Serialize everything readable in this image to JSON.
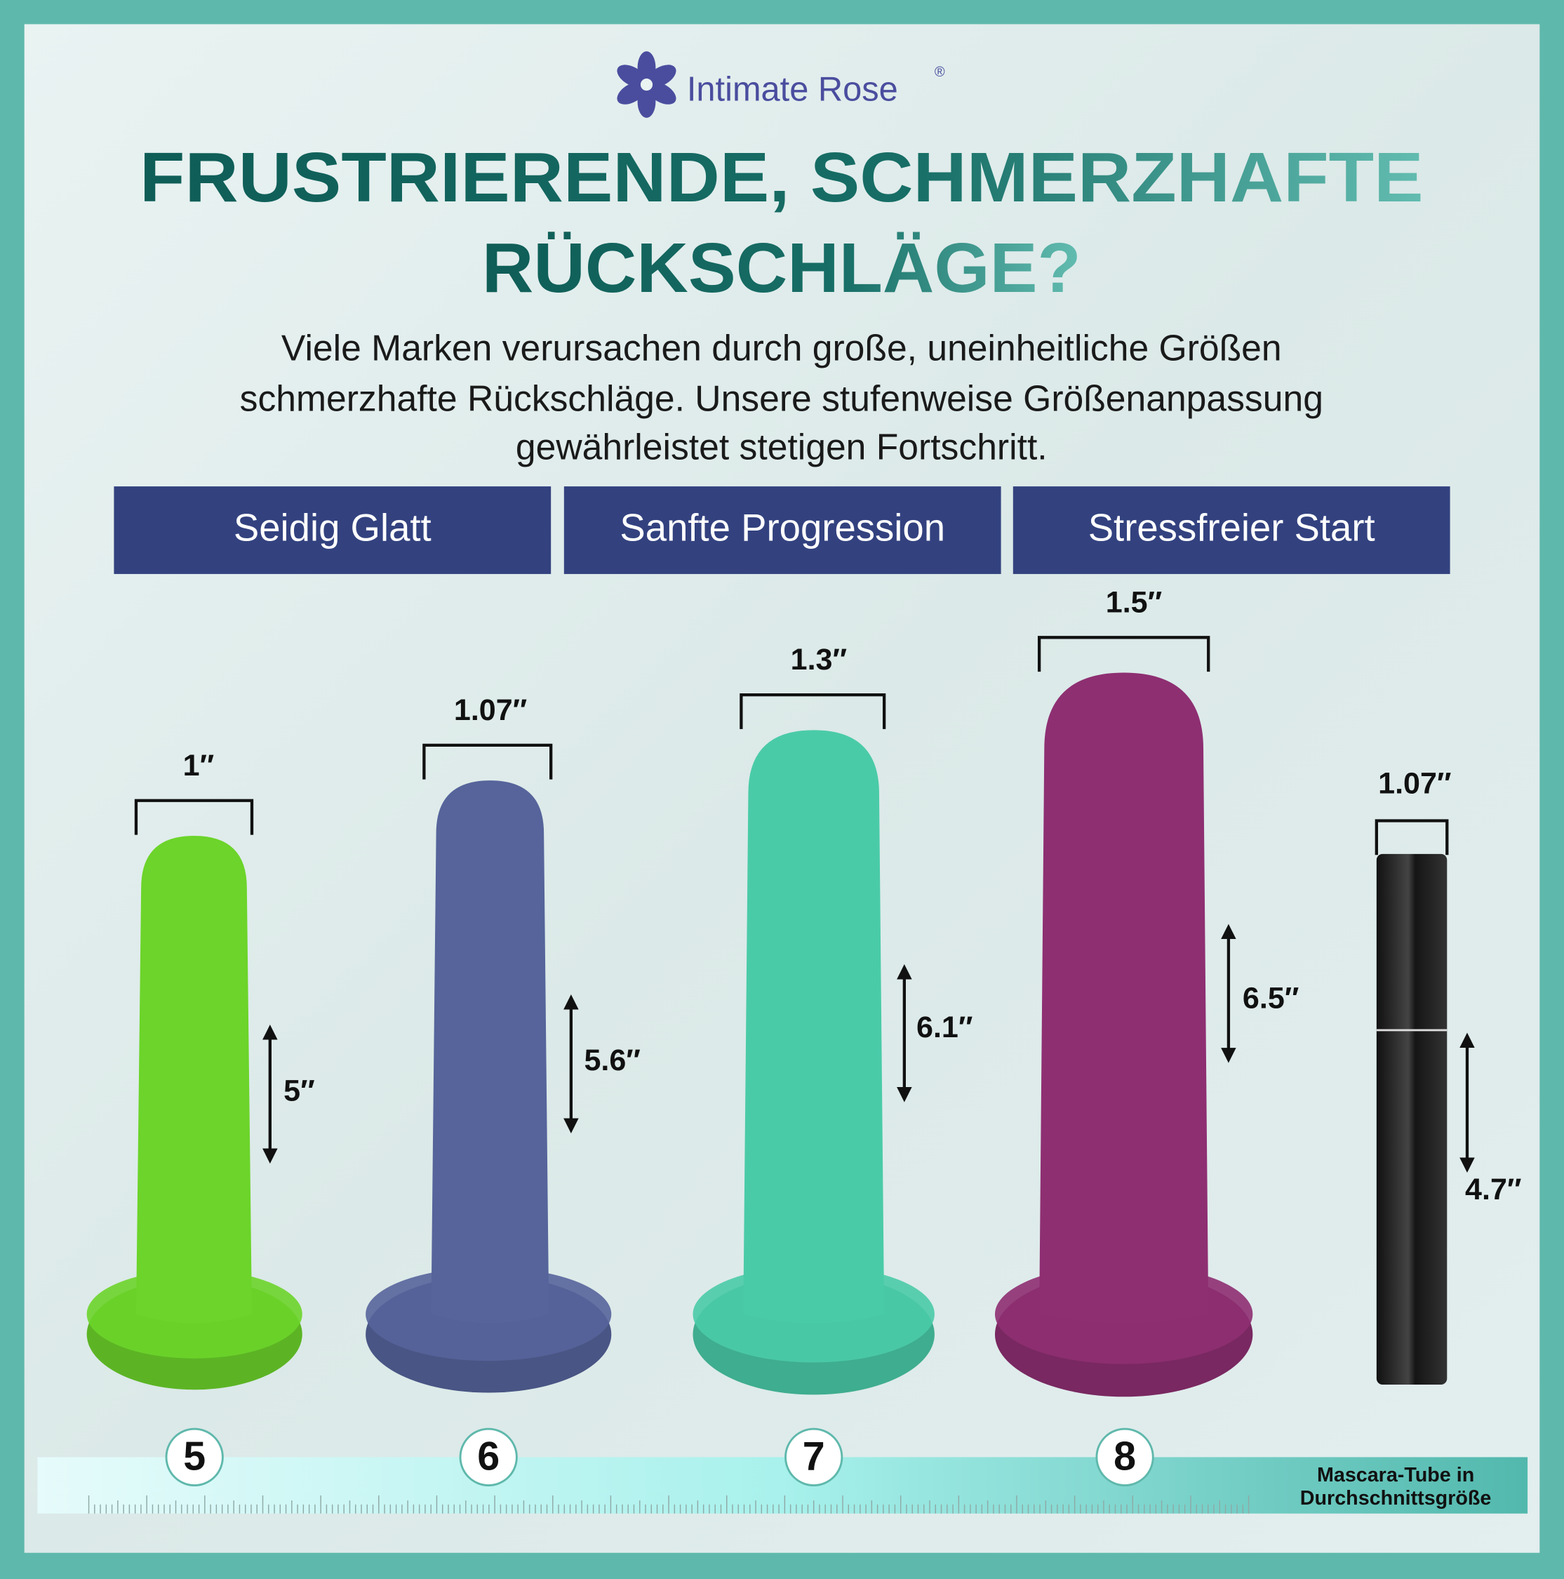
{
  "brand": "Intimate Rose",
  "brand_mark": "®",
  "headline": [
    "FRUSTRIERENDE, SCHMERZHAFTE",
    "RÜCKSCHLÄGE?"
  ],
  "subtitle": [
    "Viele Marken verursachen durch große, uneinheitliche Größen",
    "schmerzhafte Rückschläge. Unsere stufenweise Größenanpassung",
    "gewährleistet stetigen Fortschritt."
  ],
  "features": [
    "Seidig Glatt",
    "Sanfte Progression",
    "Stressfreier Start"
  ],
  "products": [
    {
      "size": "5",
      "width": "1″",
      "length": "5″",
      "color": "#6cd42a"
    },
    {
      "size": "6",
      "width": "1.07″",
      "length": "5.6″",
      "color": "#56649b"
    },
    {
      "size": "7",
      "width": "1.3″",
      "length": "6.1″",
      "color": "#4acba8"
    },
    {
      "size": "8",
      "width": "1.5″",
      "length": "6.5″",
      "color": "#8e2f72"
    }
  ],
  "mascara": {
    "width": "1.07″",
    "length": "4.7″",
    "caption": [
      "Mascara-Tube in",
      "Durchschnittsgröße"
    ]
  }
}
